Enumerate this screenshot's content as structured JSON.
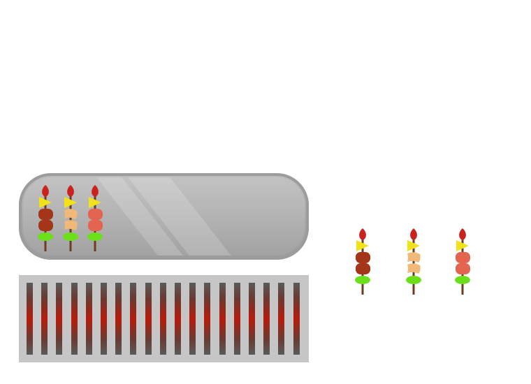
{
  "scene": {
    "tray_label": "serving-tray",
    "grill_label": "grill",
    "grill_bars": 19
  },
  "tray_skewers": [
    {
      "pieces": [
        "tomato",
        "pepper-yellow",
        "meat-dark",
        "meat-dark",
        "onion-green"
      ]
    },
    {
      "pieces": [
        "tomato",
        "pepper-yellow",
        "chicken",
        "chicken",
        "onion-green"
      ]
    },
    {
      "pieces": [
        "tomato",
        "pepper-yellow",
        "meat-light",
        "meat-light",
        "onion-green"
      ]
    }
  ],
  "order_skewers": [
    {
      "pieces": [
        "tomato",
        "pepper-yellow",
        "meat-dark",
        "meat-dark",
        "onion-green"
      ]
    },
    {
      "pieces": [
        "tomato",
        "pepper-yellow",
        "chicken",
        "chicken",
        "onion-green"
      ]
    },
    {
      "pieces": [
        "tomato",
        "pepper-yellow",
        "meat-light",
        "meat-light",
        "onion-green"
      ]
    }
  ],
  "colors": {
    "tomato": "#c8231e",
    "pepper-yellow": "#f2e21a",
    "meat-dark": "#a53518",
    "meat-light": "#e3654f",
    "chicken": "#f0b978",
    "onion-green": "#6be01a",
    "stick": "#6b3d22"
  }
}
